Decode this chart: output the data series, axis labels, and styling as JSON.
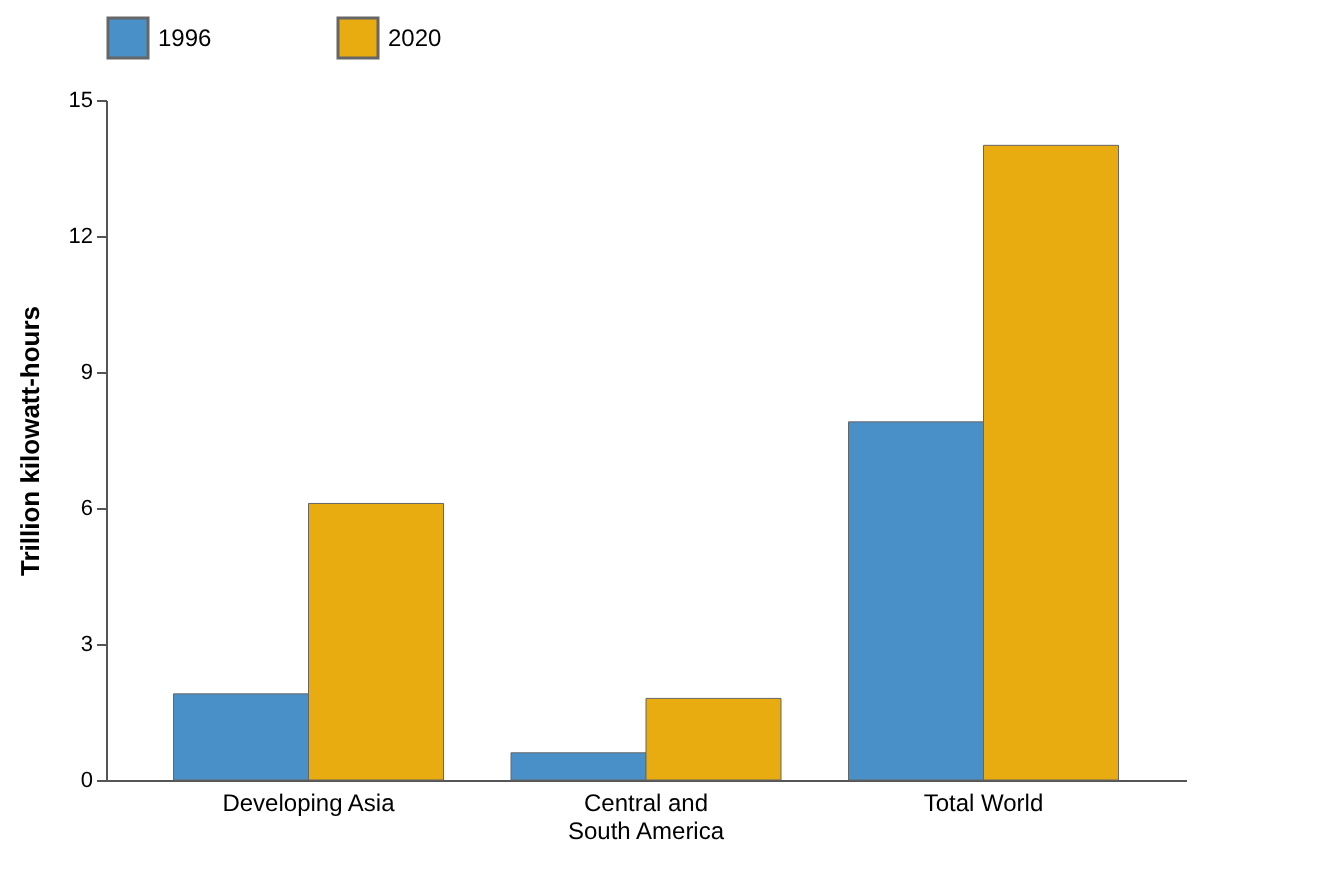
{
  "chart_data": {
    "type": "bar",
    "ylabel": "Trillion kilowatt-hours",
    "categories": [
      "Developing Asia",
      "Central and South America",
      "Total World"
    ],
    "series": [
      {
        "name": "1996",
        "color": "#4a90c8",
        "values": [
          1.9,
          0.6,
          7.9
        ]
      },
      {
        "name": "2020",
        "color": "#e8ac10",
        "values": [
          6.1,
          1.8,
          14.0
        ]
      }
    ],
    "ylim": [
      0,
      15
    ],
    "yticks": [
      0,
      3,
      6,
      9,
      12,
      15
    ],
    "grid": false,
    "legend": "top"
  }
}
